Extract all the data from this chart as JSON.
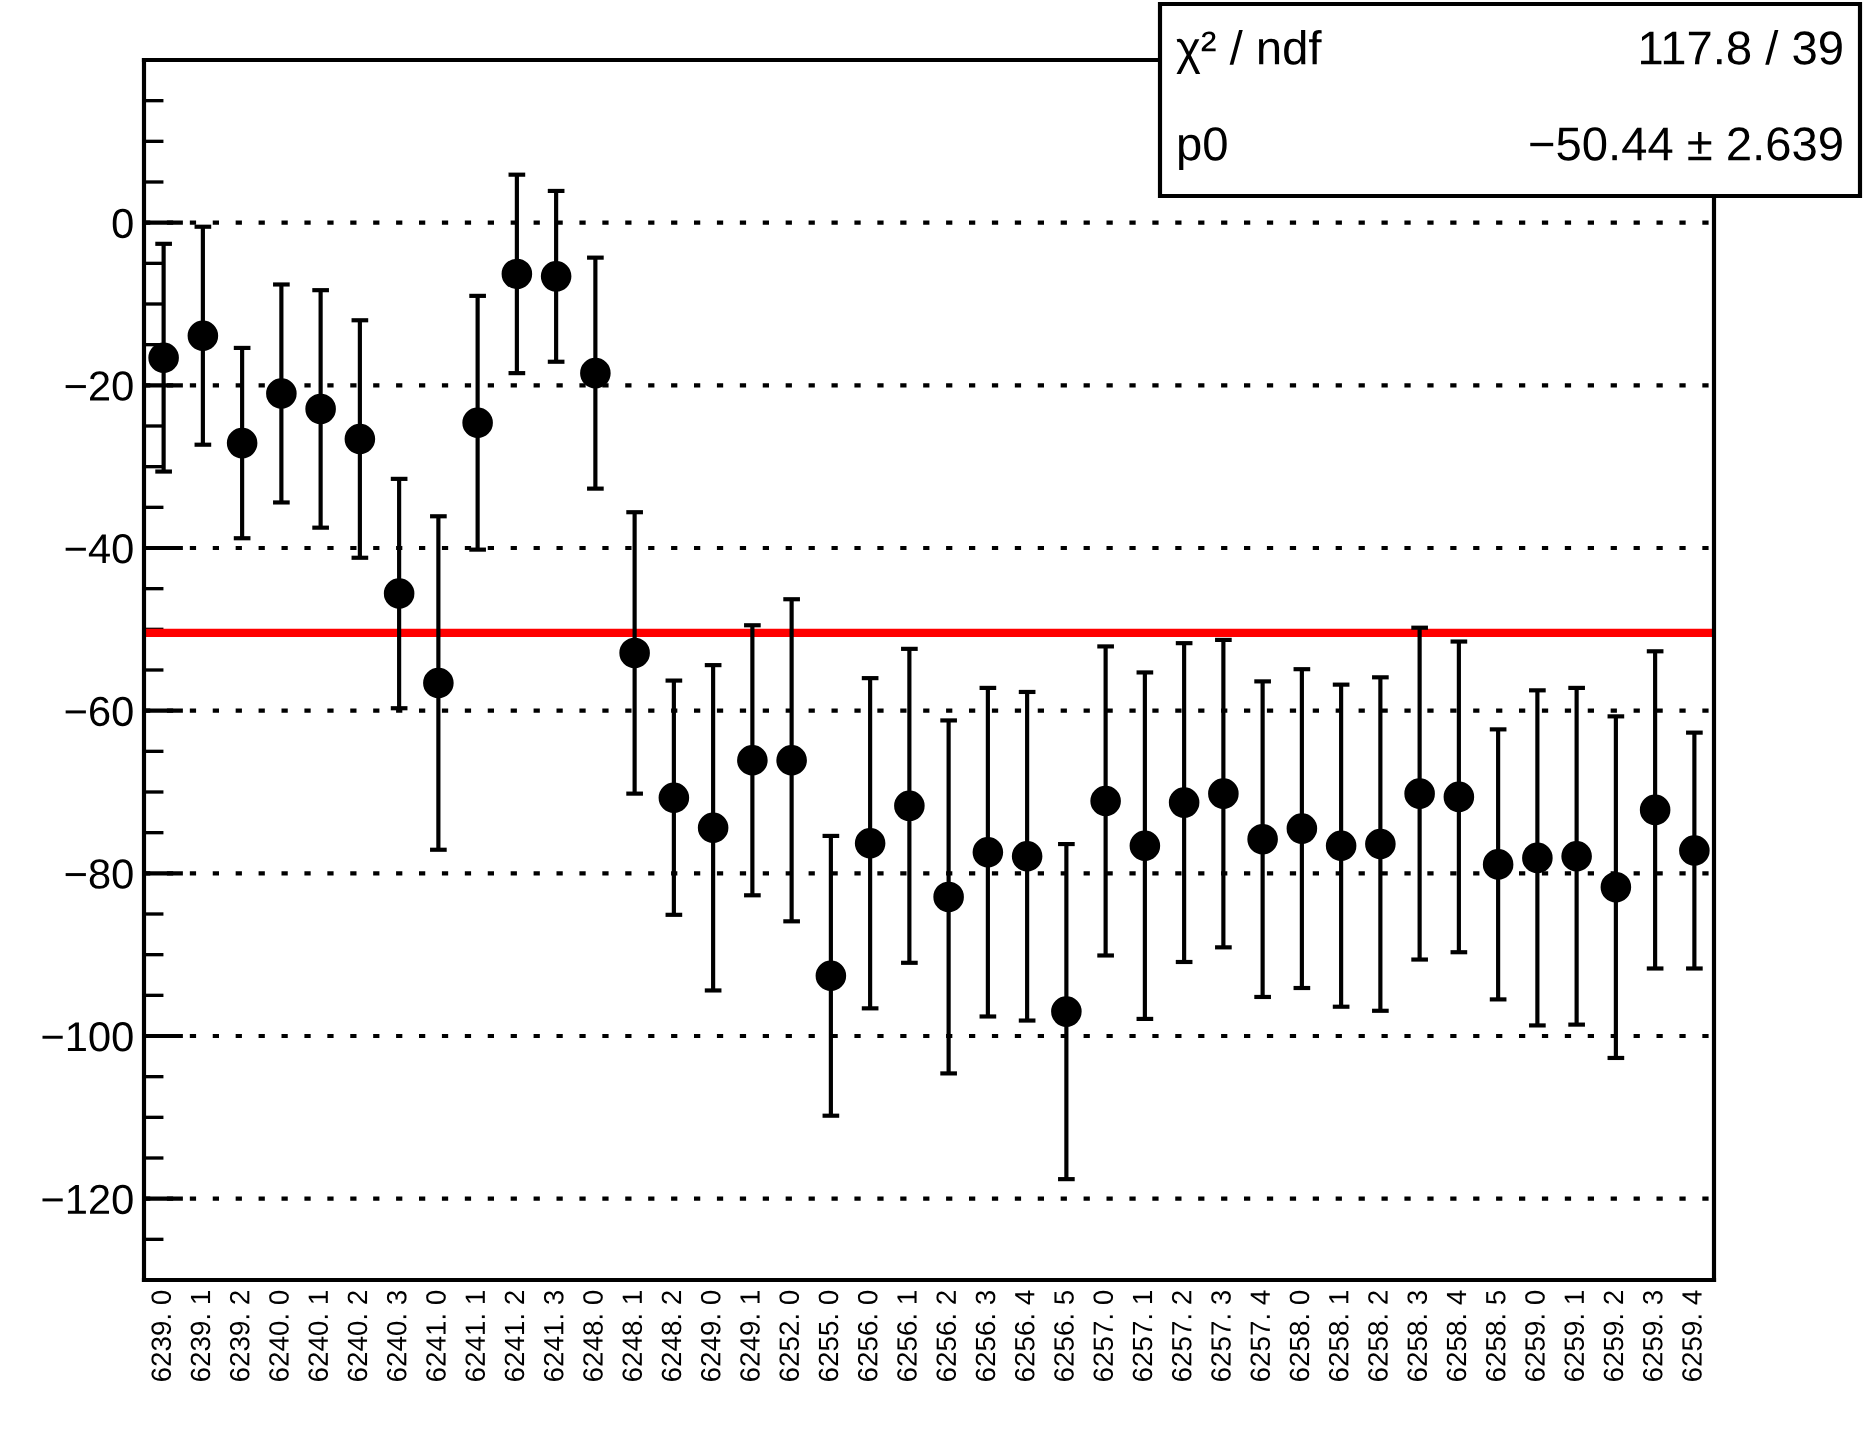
{
  "chart_data": {
    "type": "scatter",
    "categories": [
      "6239. 0",
      "6239. 1",
      "6239. 2",
      "6240. 0",
      "6240. 1",
      "6240. 2",
      "6240. 3",
      "6241. 0",
      "6241. 1",
      "6241. 2",
      "6241. 3",
      "6248. 0",
      "6248. 1",
      "6248. 2",
      "6249. 0",
      "6249. 1",
      "6252. 0",
      "6255. 0",
      "6256. 0",
      "6256. 1",
      "6256. 2",
      "6256. 3",
      "6256. 4",
      "6256. 5",
      "6257. 0",
      "6257. 1",
      "6257. 2",
      "6257. 3",
      "6257. 4",
      "6258. 0",
      "6258. 1",
      "6258. 2",
      "6258. 3",
      "6258. 4",
      "6258. 5",
      "6259. 0",
      "6259. 1",
      "6259. 2",
      "6259. 3",
      "6259. 4"
    ],
    "series": [
      {
        "color": "#000000",
        "values": [
          -16.6,
          -13.9,
          -27.1,
          -21,
          -22.9,
          -26.6,
          -45.6,
          -56.6,
          -24.6,
          -6.3,
          -6.6,
          -18.5,
          -52.9,
          -70.7,
          -74.4,
          -66.1,
          -66.1,
          -92.6,
          -76.3,
          -71.7,
          -82.9,
          -77.4,
          -77.9,
          -97.0,
          -71.1,
          -76.6,
          -71.3,
          -70.2,
          -75.8,
          -74.5,
          -76.6,
          -76.4,
          -70.2,
          -70.6,
          -78.9,
          -78.1,
          -77.9,
          -81.7,
          -72.2,
          -77.2
        ],
        "errors": [
          14,
          13.4,
          11.7,
          13.4,
          14.6,
          14.6,
          14.1,
          20.5,
          15.6,
          12.2,
          10.5,
          14.2,
          17.3,
          14.4,
          20,
          16.6,
          19.8,
          17.2,
          20.3,
          19.3,
          21.7,
          20.2,
          20.2,
          20.6,
          19,
          21.3,
          19.6,
          18.9,
          19.4,
          19.6,
          19.8,
          20.5,
          20.4,
          19.1,
          16.6,
          20.6,
          20.7,
          21,
          19.5,
          14.5
        ]
      }
    ],
    "ylim": [
      -130,
      20
    ],
    "yticks": [
      {
        "value": -130,
        "label": null
      },
      {
        "value": -125,
        "label": null
      },
      -120,
      {
        "value": -115,
        "label": null
      },
      {
        "value": -110,
        "label": null
      },
      {
        "value": -105,
        "label": null
      },
      -100,
      {
        "value": -95,
        "label": null
      },
      {
        "value": -90,
        "label": null
      },
      {
        "value": -85,
        "label": null
      },
      -80,
      {
        "value": -75,
        "label": null
      },
      {
        "value": -70,
        "label": null
      },
      {
        "value": -65,
        "label": null
      },
      -60,
      {
        "value": -55,
        "label": null
      },
      {
        "value": -50,
        "label": null
      },
      {
        "value": -45,
        "label": null
      },
      -40,
      {
        "value": -35,
        "label": null
      },
      {
        "value": -30,
        "label": null
      },
      {
        "value": -25,
        "label": null
      },
      -20,
      {
        "value": -15,
        "label": null
      },
      {
        "value": -10,
        "label": null
      },
      {
        "value": -5,
        "label": null
      },
      0,
      {
        "value": 5,
        "label": null
      },
      {
        "value": 10,
        "label": null
      },
      {
        "value": 15,
        "label": null
      },
      {
        "value": 20,
        "label": null
      }
    ],
    "ref_lines": [
      {
        "axis": "y",
        "value": -50.44,
        "color": "#ff0000",
        "line_style": "solid"
      }
    ],
    "annotations": [
      "χ² / ndf",
      "117.8 / 39",
      "p0",
      "−50.44 ± 2.639"
    ],
    "grid": "y",
    "marker": "circle",
    "legend": false
  }
}
